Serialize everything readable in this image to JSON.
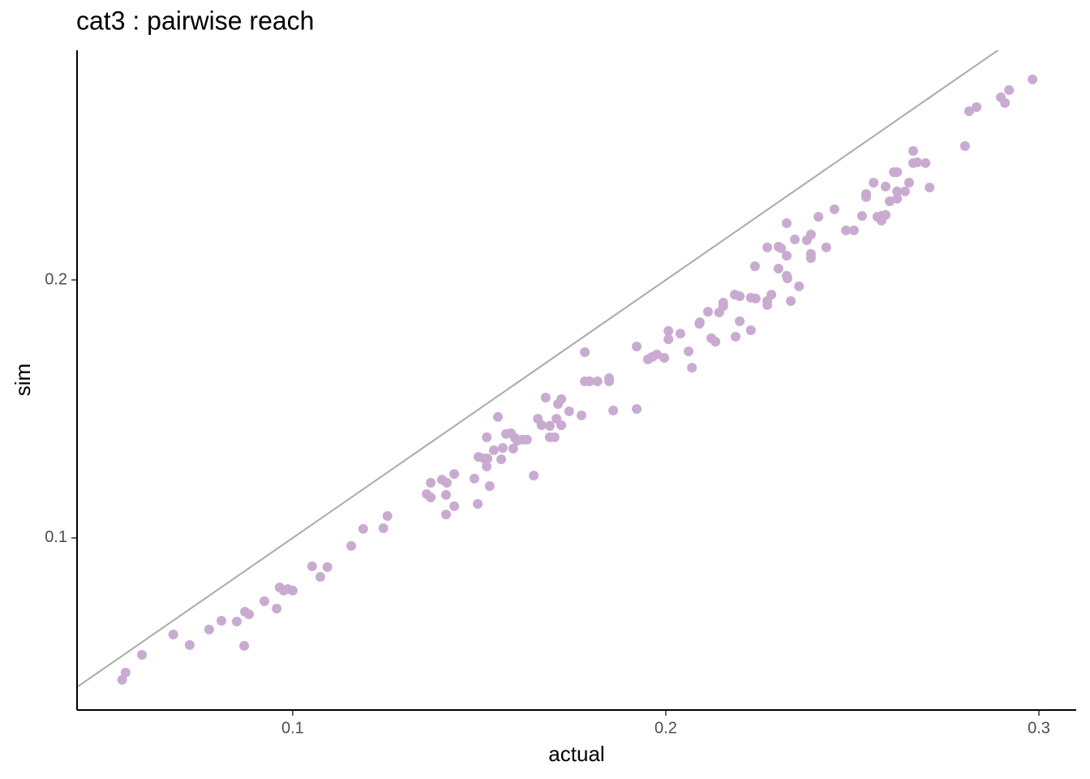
{
  "chart_data": {
    "type": "scatter",
    "title": "cat3 : pairwise reach",
    "x_label": "actual",
    "y_label": "sim",
    "color": "#c9abd1",
    "xlim": [
      0.0422,
      0.31
    ],
    "ylim": [
      0.0333,
      0.289
    ],
    "xticks": [
      0.1,
      0.2,
      0.3
    ],
    "yticks": [
      0.1,
      0.2
    ],
    "grid": false,
    "reference_line": {
      "slope": 1,
      "intercept": 0,
      "color": "#aaaaaa"
    },
    "x": [
      0.0543,
      0.0552,
      0.0596,
      0.068,
      0.0724,
      0.0776,
      0.0809,
      0.085,
      0.087,
      0.0872,
      0.0883,
      0.0924,
      0.0957,
      0.0965,
      0.0976,
      0.0987,
      0.1,
      0.1052,
      0.1074,
      0.1093,
      0.1157,
      0.1189,
      0.1243,
      0.1254,
      0.1359,
      0.137,
      0.137,
      0.14,
      0.1413,
      0.1411,
      0.1411,
      0.1433,
      0.1433,
      0.1487,
      0.1496,
      0.1498,
      0.1513,
      0.152,
      0.152,
      0.1522,
      0.1528,
      0.1539,
      0.155,
      0.1559,
      0.1563,
      0.1572,
      0.1585,
      0.1591,
      0.1596,
      0.1602,
      0.1617,
      0.1628,
      0.1646,
      0.1657,
      0.1667,
      0.1678,
      0.1689,
      0.1689,
      0.1702,
      0.1707,
      0.1711,
      0.172,
      0.172,
      0.1741,
      0.1774,
      0.1783,
      0.1783,
      0.1796,
      0.1817,
      0.1848,
      0.1848,
      0.1859,
      0.1922,
      0.1922,
      0.1952,
      0.1963,
      0.1976,
      0.1996,
      0.2007,
      0.2007,
      0.2039,
      0.2061,
      0.207,
      0.209,
      0.2091,
      0.2113,
      0.2122,
      0.2133,
      0.2143,
      0.2154,
      0.2154,
      0.2185,
      0.2187,
      0.2198,
      0.2198,
      0.2228,
      0.2228,
      0.2239,
      0.2241,
      0.2272,
      0.2272,
      0.2272,
      0.2283,
      0.2302,
      0.2302,
      0.2309,
      0.2324,
      0.2324,
      0.2326,
      0.2324,
      0.2335,
      0.2346,
      0.2357,
      0.2378,
      0.2389,
      0.2389,
      0.2389,
      0.2409,
      0.243,
      0.2452,
      0.2483,
      0.2504,
      0.2526,
      0.2537,
      0.2537,
      0.2557,
      0.2567,
      0.2578,
      0.2578,
      0.2589,
      0.2589,
      0.26,
      0.2611,
      0.262,
      0.262,
      0.262,
      0.2641,
      0.2652,
      0.2663,
      0.2663,
      0.2674,
      0.2696,
      0.2707,
      0.2802,
      0.2813,
      0.2833,
      0.2898,
      0.2909,
      0.292,
      0.2983
    ],
    "values": [
      0.045,
      0.0478,
      0.0547,
      0.0626,
      0.0585,
      0.0645,
      0.0679,
      0.0676,
      0.0582,
      0.0714,
      0.0704,
      0.0755,
      0.0726,
      0.0808,
      0.0796,
      0.0802,
      0.0796,
      0.089,
      0.0849,
      0.0887,
      0.0969,
      0.1035,
      0.1038,
      0.1085,
      0.117,
      0.1157,
      0.1214,
      0.1226,
      0.1214,
      0.1167,
      0.1091,
      0.1123,
      0.1248,
      0.123,
      0.1132,
      0.1314,
      0.1308,
      0.139,
      0.1277,
      0.1308,
      0.1201,
      0.134,
      0.1469,
      0.1305,
      0.1349,
      0.1403,
      0.1406,
      0.1346,
      0.1387,
      0.1377,
      0.1381,
      0.1381,
      0.1242,
      0.1462,
      0.1437,
      0.1544,
      0.1434,
      0.139,
      0.139,
      0.1462,
      0.1519,
      0.1437,
      0.1538,
      0.1491,
      0.1475,
      0.172,
      0.1607,
      0.1607,
      0.1607,
      0.1619,
      0.1607,
      0.1494,
      0.1742,
      0.15,
      0.1692,
      0.1701,
      0.1711,
      0.1698,
      0.1802,
      0.177,
      0.1792,
      0.1723,
      0.166,
      0.183,
      0.1836,
      0.1877,
      0.1774,
      0.1761,
      0.1874,
      0.1899,
      0.1912,
      0.1943,
      0.178,
      0.1937,
      0.184,
      0.1931,
      0.1805,
      0.2053,
      0.1928,
      0.2126,
      0.1903,
      0.1918,
      0.1943,
      0.2044,
      0.2129,
      0.2123,
      0.2094,
      0.2016,
      0.2006,
      0.222,
      0.1918,
      0.2157,
      0.1975,
      0.2154,
      0.2176,
      0.2101,
      0.2085,
      0.2245,
      0.2126,
      0.2274,
      0.2192,
      0.2192,
      0.2248,
      0.2321,
      0.2333,
      0.2377,
      0.2245,
      0.223,
      0.2248,
      0.2362,
      0.2252,
      0.2305,
      0.2418,
      0.2418,
      0.2343,
      0.2315,
      0.2343,
      0.2377,
      0.25,
      0.2453,
      0.2456,
      0.2453,
      0.2358,
      0.2519,
      0.2654,
      0.267,
      0.2708,
      0.2686,
      0.2736,
      0.2777
    ]
  }
}
